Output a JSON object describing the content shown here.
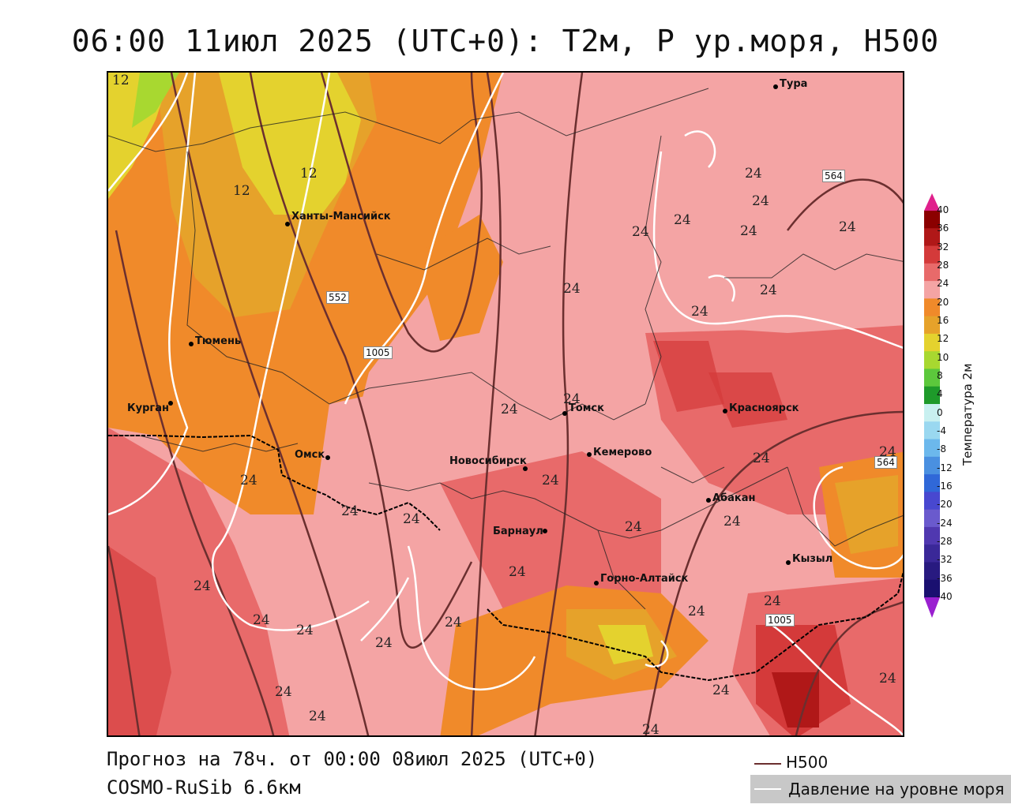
{
  "title": "06:00 11июл 2025 (UTC+0): T2м, P ур.моря, H500",
  "footer": {
    "forecast": "Прогноз на 78ч. от 00:00 08июл 2025 (UTC+0)",
    "model": "COSMO-RuSib 6.6км"
  },
  "legend": {
    "h500": "H500",
    "pressure": "Давление на уровне моря"
  },
  "colorbar": {
    "title": "Температура 2м",
    "labels": [
      "40",
      "36",
      "32",
      "28",
      "24",
      "20",
      "16",
      "12",
      "10",
      "8",
      "4",
      "0",
      "-4",
      "-8",
      "-12",
      "-16",
      "-20",
      "-24",
      "-28",
      "-32",
      "-36",
      "-40"
    ],
    "colors": [
      "#8b0000",
      "#b01818",
      "#d43a3a",
      "#e86a6a",
      "#f4a4a4",
      "#f08a2a",
      "#e6a22a",
      "#e4d22e",
      "#a8d830",
      "#5cc83c",
      "#1e9a2a",
      "#c8f0f0",
      "#9ad8f0",
      "#6cb8ec",
      "#4a90e0",
      "#3068d8",
      "#4848d0",
      "#6a5acd",
      "#5038b0",
      "#3a2898",
      "#281a80",
      "#1a1070"
    ]
  },
  "cities": [
    {
      "name": "Тура"
    },
    {
      "name": "Ханты-Мансийск"
    },
    {
      "name": "Тюмень"
    },
    {
      "name": "Курган"
    },
    {
      "name": "Омск"
    },
    {
      "name": "Новосибирск"
    },
    {
      "name": "Томск"
    },
    {
      "name": "Кемерово"
    },
    {
      "name": "Красноярск"
    },
    {
      "name": "Абакан"
    },
    {
      "name": "Барнаул"
    },
    {
      "name": "Горно-Алтайск"
    },
    {
      "name": "Кызыл"
    }
  ],
  "contour_labels": {
    "h552": "552",
    "h564a": "564",
    "h564b": "564",
    "p1005a": "1005",
    "p1005b": "1005"
  },
  "temp_labels": [
    "12",
    "12",
    "12",
    "24",
    "24",
    "24",
    "24",
    "24",
    "24",
    "24",
    "24",
    "24",
    "24",
    "24",
    "24",
    "24",
    "24",
    "24",
    "24",
    "24",
    "24",
    "24",
    "24",
    "24",
    "24",
    "24",
    "24",
    "24",
    "24",
    "24",
    "24",
    "24",
    "24",
    "24",
    "24"
  ]
}
